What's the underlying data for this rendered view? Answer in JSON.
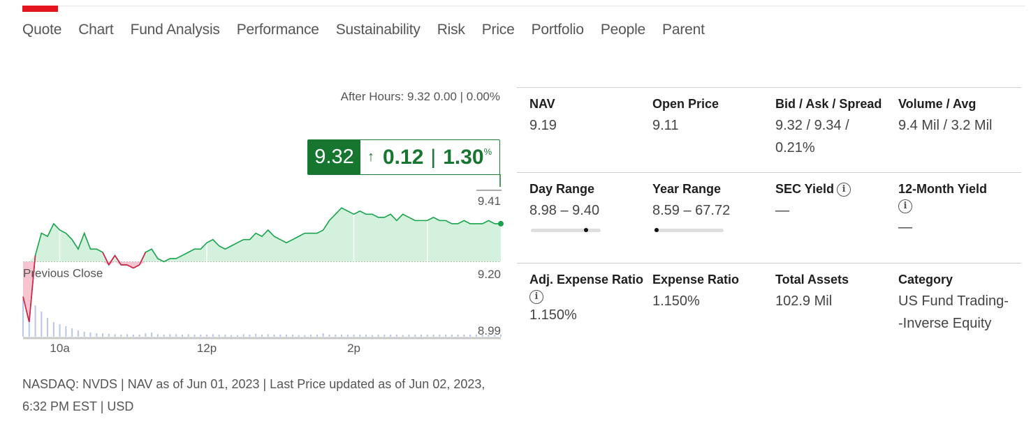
{
  "nav": {
    "tabs": [
      {
        "label": "Quote",
        "active": true
      },
      {
        "label": "Chart"
      },
      {
        "label": "Fund Analysis"
      },
      {
        "label": "Performance"
      },
      {
        "label": "Sustainability"
      },
      {
        "label": "Risk"
      },
      {
        "label": "Price"
      },
      {
        "label": "Portfolio"
      },
      {
        "label": "People"
      },
      {
        "label": "Parent"
      }
    ],
    "active_color": "#e4151f"
  },
  "quote": {
    "after_hours": "After Hours: 9.32 0.00 | 0.00%",
    "last_price": "9.32",
    "change_arrow": "↑",
    "change": "0.12",
    "separator": "|",
    "change_pct": "1.30",
    "pct_sign": "%",
    "up_color": "#16762f"
  },
  "chart_data": {
    "type": "area",
    "previous_close": 9.2,
    "previous_close_label": "Previous Close",
    "y_tick_labels": [
      "9.41",
      "9.20",
      "8.99"
    ],
    "ylim": [
      8.99,
      9.41
    ],
    "x_tick_labels": [
      "10a",
      "12p",
      "2p"
    ],
    "x_tick_minutes": [
      30,
      150,
      270
    ],
    "x_range_minutes": [
      0,
      390
    ],
    "series": [
      {
        "x": [
          0,
          5,
          10,
          15,
          20,
          25,
          30,
          35,
          40,
          45,
          50,
          55,
          60,
          65,
          70,
          75,
          80,
          85,
          90,
          95,
          100,
          105,
          110,
          115,
          120,
          125,
          130,
          135,
          140,
          145,
          150,
          155,
          160,
          165,
          170,
          175,
          180,
          185,
          190,
          195,
          200,
          205,
          210,
          215,
          220,
          225,
          230,
          235,
          240,
          245,
          250,
          255,
          260,
          265,
          270,
          275,
          280,
          285,
          290,
          295,
          300,
          305,
          310,
          315,
          320,
          325,
          330,
          335,
          340,
          345,
          350,
          355,
          360,
          365,
          370,
          375,
          380,
          385,
          390
        ],
        "y": [
          9.09,
          9.01,
          9.22,
          9.29,
          9.28,
          9.32,
          9.3,
          9.29,
          9.27,
          9.24,
          9.29,
          9.24,
          9.24,
          9.23,
          9.19,
          9.22,
          9.19,
          9.19,
          9.18,
          9.19,
          9.23,
          9.24,
          9.21,
          9.2,
          9.21,
          9.21,
          9.22,
          9.23,
          9.24,
          9.24,
          9.26,
          9.27,
          9.25,
          9.24,
          9.25,
          9.26,
          9.27,
          9.27,
          9.29,
          9.28,
          9.3,
          9.28,
          9.27,
          9.26,
          9.27,
          9.28,
          9.29,
          9.29,
          9.29,
          9.3,
          9.33,
          9.35,
          9.37,
          9.36,
          9.35,
          9.36,
          9.35,
          9.35,
          9.34,
          9.34,
          9.35,
          9.33,
          9.35,
          9.34,
          9.33,
          9.33,
          9.33,
          9.34,
          9.33,
          9.33,
          9.32,
          9.32,
          9.33,
          9.32,
          9.32,
          9.32,
          9.33,
          9.32,
          9.32
        ]
      }
    ],
    "volume": [
      0.9,
      0.8,
      0.75,
      0.6,
      0.45,
      0.35,
      0.3,
      0.25,
      0.2,
      0.15,
      0.12,
      0.1,
      0.08,
      0.08,
      0.07,
      0.06,
      0.05,
      0.06,
      0.05,
      0.05,
      0.08,
      0.1,
      0.06,
      0.05,
      0.06,
      0.06,
      0.05,
      0.06,
      0.05,
      0.05,
      0.05,
      0.06,
      0.05,
      0.05,
      0.04,
      0.04,
      0.06,
      0.05,
      0.07,
      0.05,
      0.06,
      0.05,
      0.05,
      0.05,
      0.05,
      0.04,
      0.04,
      0.05,
      0.05,
      0.08,
      0.05,
      0.05,
      0.05,
      0.05,
      0.05,
      0.05,
      0.05,
      0.04,
      0.05,
      0.05,
      0.05,
      0.05,
      0.04,
      0.05,
      0.05,
      0.05,
      0.05,
      0.05,
      0.05,
      0.05,
      0.05,
      0.05,
      0.05,
      0.05,
      0.05,
      0.05,
      0.05,
      0.05,
      0.05
    ],
    "up_color": "#16a34a",
    "up_fill": "#d4f1dd",
    "down_color": "#e0194b",
    "down_fill": "#f7c4d0",
    "volume_color": "#b8c6e8"
  },
  "footer": {
    "note": "NASDAQ: NVDS | NAV as of Jun 01, 2023 | Last Price updated as of Jun 02, 2023, 6:32 PM EST | USD"
  },
  "stats": {
    "nav": {
      "label": "NAV",
      "value": "9.19"
    },
    "open_price": {
      "label": "Open Price",
      "value": "9.11"
    },
    "bid_ask": {
      "label": "Bid / Ask / Spread",
      "value": "9.32 / 9.34 / 0.21%"
    },
    "volume": {
      "label": "Volume / Avg",
      "value": "9.4 Mil / 3.2 Mil"
    },
    "day_range": {
      "label": "Day Range",
      "value": "8.98 – 9.40",
      "position": 0.81
    },
    "year_range": {
      "label": "Year Range",
      "value": "8.59 – 67.72",
      "position": 0.01
    },
    "sec_yield": {
      "label": "SEC Yield",
      "value": "—"
    },
    "twelve_month_yield": {
      "label": "12-Month Yield",
      "value": "—"
    },
    "adj_expense_ratio": {
      "label": "Adj. Expense Ratio",
      "value": "1.150%"
    },
    "expense_ratio": {
      "label": "Expense Ratio",
      "value": "1.150%"
    },
    "total_assets": {
      "label": "Total Assets",
      "value": "102.9 Mil"
    },
    "category": {
      "label": "Category",
      "value": "US Fund Trading--Inverse Equity"
    },
    "info_glyph": "i"
  }
}
